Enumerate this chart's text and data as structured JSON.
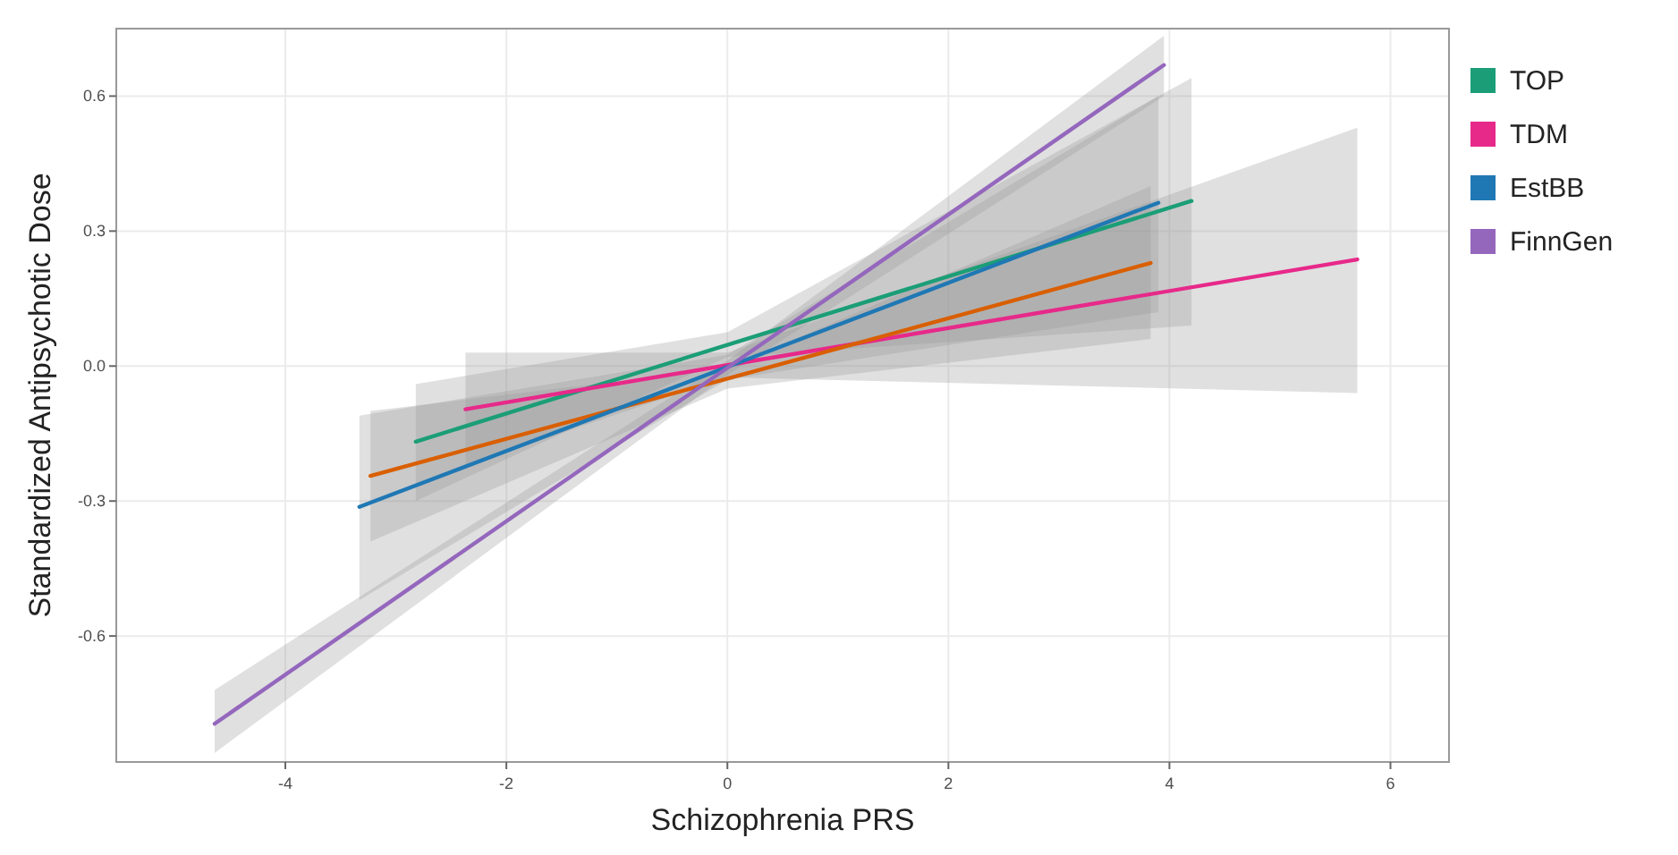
{
  "chart_data": {
    "type": "line",
    "xlabel": "Schizophrenia PRS",
    "ylabel": "Standardized Antipsychotic Dose",
    "xlim": [
      -5.53,
      6.53
    ],
    "ylim": [
      -0.88,
      0.75
    ],
    "xticks": [
      -4,
      -2,
      0,
      2,
      4,
      6
    ],
    "yticks": [
      -0.6,
      -0.3,
      {
        "value": 0,
        "label": "0.0"
      },
      0.3,
      0.6
    ],
    "grid": true,
    "legend": "right",
    "marker": "none",
    "line_style": "solid",
    "series": [
      {
        "name": "TOP",
        "color": "#1b9e77",
        "x": [
          -2.82,
          0,
          4.2
        ],
        "values": [
          -0.168,
          0.047,
          0.367
        ],
        "lower": [
          -0.3,
          0.02,
          0.09
        ],
        "upper": [
          -0.04,
          0.075,
          0.64
        ]
      },
      {
        "name": "TDM",
        "color": "#e7298a",
        "x": [
          -2.37,
          0,
          5.7
        ],
        "values": [
          -0.096,
          0.002,
          0.237
        ],
        "lower": [
          -0.22,
          -0.025,
          -0.06
        ],
        "upper": [
          0.03,
          0.03,
          0.53
        ]
      },
      {
        "color": "#d95f02",
        "x": [
          -3.23,
          0,
          3.83
        ],
        "values": [
          -0.244,
          -0.028,
          0.229
        ],
        "lower": [
          -0.39,
          -0.05,
          0.06
        ],
        "upper": [
          -0.1,
          -0.005,
          0.4
        ]
      },
      {
        "name": "EstBB",
        "color": "#1f78b4",
        "x": [
          -3.33,
          0,
          3.9
        ],
        "values": [
          -0.313,
          -0.002,
          0.363
        ],
        "lower": [
          -0.52,
          -0.03,
          0.12
        ],
        "upper": [
          -0.11,
          0.025,
          0.6
        ]
      },
      {
        "name": "FinnGen",
        "color": "#9467bd",
        "x": [
          -4.64,
          0,
          3.95
        ],
        "values": [
          -0.795,
          -0.004,
          0.669
        ],
        "lower": [
          -0.86,
          -0.02,
          0.6
        ],
        "upper": [
          -0.72,
          0.012,
          0.734
        ]
      }
    ]
  }
}
